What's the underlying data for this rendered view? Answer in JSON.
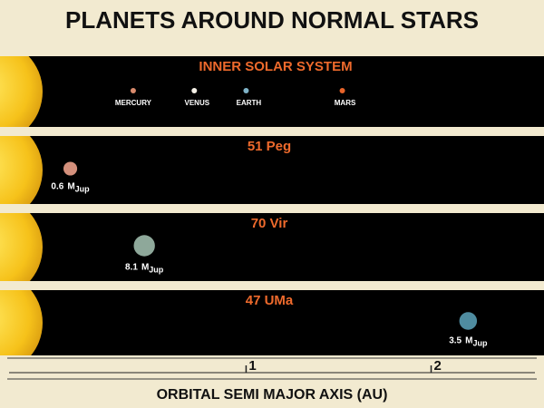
{
  "title": "PLANETS AROUND NORMAL STARS",
  "mass_unit": "M",
  "mass_sub": "Jup",
  "panels": [
    {
      "title": "INNER SOLAR SYSTEM",
      "planets": [
        {
          "name": "MERCURY",
          "au": 0.39,
          "color": "#d98a6c"
        },
        {
          "name": "VENUS",
          "au": 0.72,
          "color": "#f4f0e6"
        },
        {
          "name": "EARTH",
          "au": 1.0,
          "color": "#7fb3c8"
        },
        {
          "name": "MARS",
          "au": 1.52,
          "color": "#e8642a"
        }
      ]
    },
    {
      "title": "51 Peg",
      "planets": [
        {
          "au": 0.05,
          "mass": 0.6,
          "color": "#d4907c"
        }
      ]
    },
    {
      "title": "70 Vir",
      "planets": [
        {
          "au": 0.45,
          "mass": 8.1,
          "color": "#8ea89a"
        }
      ]
    },
    {
      "title": "47 UMa",
      "planets": [
        {
          "au": 2.2,
          "mass": 3.5,
          "color": "#4f8ca0"
        }
      ]
    }
  ],
  "axis": {
    "label": "ORBITAL SEMI MAJOR AXIS (AU)",
    "xlim": [
      -0.33,
      2.61
    ],
    "xticks": [
      1,
      2
    ]
  }
}
